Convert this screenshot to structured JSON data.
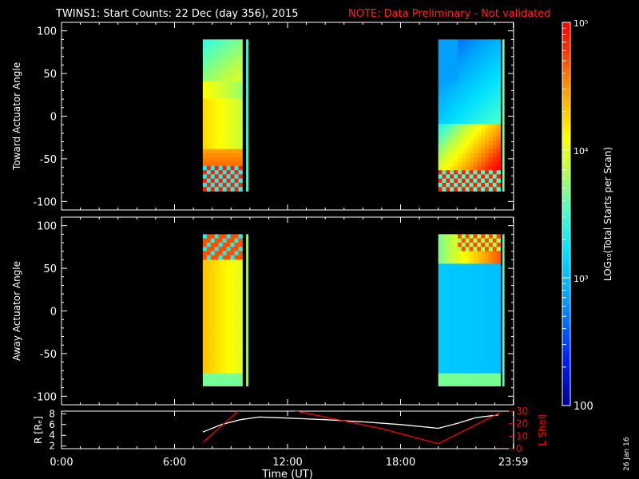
{
  "header": {
    "title": "TWINS1: Start Counts: 22 Dec (day 356), 2015",
    "note": "NOTE: Data Preliminary - Not validated",
    "note_color": "#ff2020"
  },
  "footer": {
    "date_stamp": "26 Jan 16"
  },
  "colorbar": {
    "label": "LOG₁₀(Total Starts per Scan)",
    "tick_labels": [
      "10⁵",
      "10⁴",
      "10³",
      "100"
    ],
    "tick_values": [
      100000,
      10000,
      1000,
      100
    ],
    "range": [
      100,
      100000
    ],
    "scale": "log",
    "colormap": "rainbow"
  },
  "chart_data": [
    {
      "type": "heatmap",
      "name": "toward",
      "ylabel": "Toward Actuator Angle",
      "ylim": [
        -110,
        110
      ],
      "yticks": [
        100,
        50,
        0,
        -50,
        -100
      ],
      "xlim": [
        0,
        24
      ],
      "observation_intervals_hours": [
        [
          7.5,
          9.6
        ],
        [
          9.8,
          9.9
        ],
        [
          20.0,
          23.3
        ],
        [
          23.4,
          23.5
        ]
      ],
      "angle_range": [
        -88,
        90
      ]
    },
    {
      "type": "heatmap",
      "name": "away",
      "ylabel": "Away Actuator Angle",
      "ylim": [
        -110,
        110
      ],
      "yticks": [
        100,
        50,
        0,
        -50,
        -100
      ],
      "xlim": [
        0,
        24
      ],
      "observation_intervals_hours": [
        [
          7.5,
          9.6
        ],
        [
          9.8,
          9.9
        ],
        [
          20.0,
          23.3
        ],
        [
          23.4,
          23.5
        ]
      ],
      "angle_range": [
        -88,
        90
      ]
    },
    {
      "type": "line",
      "name": "orbit",
      "xlabel": "Time (UT)",
      "xlim": [
        0,
        24
      ],
      "xticks": [
        0,
        6,
        12,
        18,
        23.983
      ],
      "xtick_labels": [
        "0:00",
        "6:00",
        "12:00",
        "18:00",
        "23:59"
      ],
      "ylabel": "R [Rₑ]",
      "ylim": [
        1.5,
        8.5
      ],
      "yticks": [
        2,
        4,
        6,
        8
      ],
      "y2label": "L Shell",
      "y2lim": [
        0,
        30
      ],
      "y2ticks": [
        0,
        10,
        20,
        30
      ],
      "series": [
        {
          "color": "#ffffff",
          "axis": "left",
          "x": [
            7.5,
            8.5,
            9.5,
            10.5,
            12,
            14,
            16,
            18,
            20,
            21,
            22,
            23.2
          ],
          "y": [
            4.6,
            6.0,
            6.9,
            7.4,
            7.2,
            6.9,
            6.5,
            6.0,
            5.3,
            6.2,
            7.3,
            7.8
          ]
        },
        {
          "color": "#ff0000",
          "axis": "right",
          "x": [
            7.5,
            9.6,
            11.5,
            17.0,
            20.0,
            23.3
          ],
          "y": [
            5,
            33,
            33,
            16,
            4,
            29
          ]
        }
      ]
    }
  ]
}
